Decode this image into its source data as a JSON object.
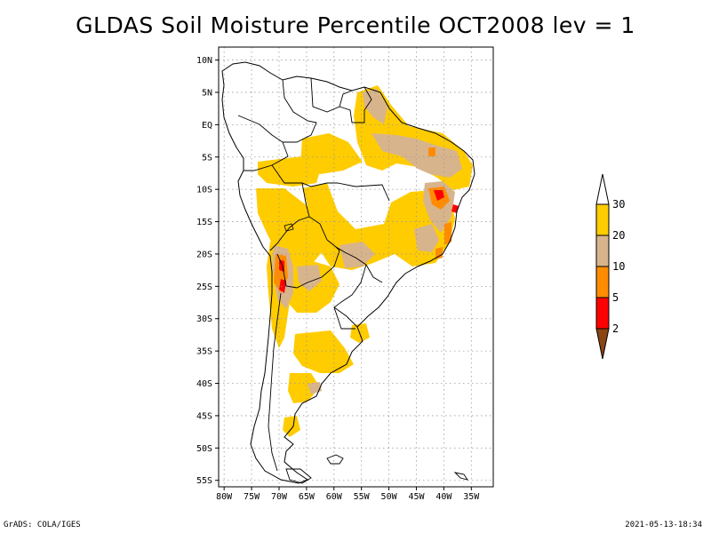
{
  "title": "GLDAS Soil Moisture Percentile OCT2008 lev = 1",
  "footer": {
    "left": "GrADS: COLA/IGES",
    "right": "2021-05-13-18:34"
  },
  "map": {
    "lon_range": [
      -81,
      -31
    ],
    "lat_range": [
      -56,
      12
    ],
    "lat_ticks": [
      {
        "v": 10,
        "label": "10N"
      },
      {
        "v": 5,
        "label": "5N"
      },
      {
        "v": 0,
        "label": "EQ"
      },
      {
        "v": -5,
        "label": "5S"
      },
      {
        "v": -10,
        "label": "10S"
      },
      {
        "v": -15,
        "label": "15S"
      },
      {
        "v": -20,
        "label": "20S"
      },
      {
        "v": -25,
        "label": "25S"
      },
      {
        "v": -30,
        "label": "30S"
      },
      {
        "v": -35,
        "label": "35S"
      },
      {
        "v": -40,
        "label": "40S"
      },
      {
        "v": -45,
        "label": "45S"
      },
      {
        "v": -50,
        "label": "50S"
      },
      {
        "v": -55,
        "label": "55S"
      }
    ],
    "lon_ticks": [
      {
        "v": -80,
        "label": "80W"
      },
      {
        "v": -75,
        "label": "75W"
      },
      {
        "v": -70,
        "label": "70W"
      },
      {
        "v": -65,
        "label": "65W"
      },
      {
        "v": -60,
        "label": "60W"
      },
      {
        "v": -55,
        "label": "55W"
      },
      {
        "v": -50,
        "label": "50W"
      },
      {
        "v": -45,
        "label": "45W"
      },
      {
        "v": -40,
        "label": "40W"
      },
      {
        "v": -35,
        "label": "35W"
      }
    ],
    "grid": "dotted"
  },
  "legend": {
    "bins": [
      {
        "color": "#ffffff",
        "label": "30"
      },
      {
        "color": "#ffcc00",
        "label": "20"
      },
      {
        "color": "#d8b48c",
        "label": "10"
      },
      {
        "color": "#ff8c00",
        "label": "5"
      },
      {
        "color": "#ff0000",
        "label": "2"
      },
      {
        "color": "#8b4513",
        "label": ""
      }
    ]
  },
  "colors": {
    "p20_30": "#ffcc00",
    "p10_20": "#d8b48c",
    "p5_10": "#ff8c00",
    "p2_5": "#ff0000",
    "p0_2": "#8b4513"
  }
}
